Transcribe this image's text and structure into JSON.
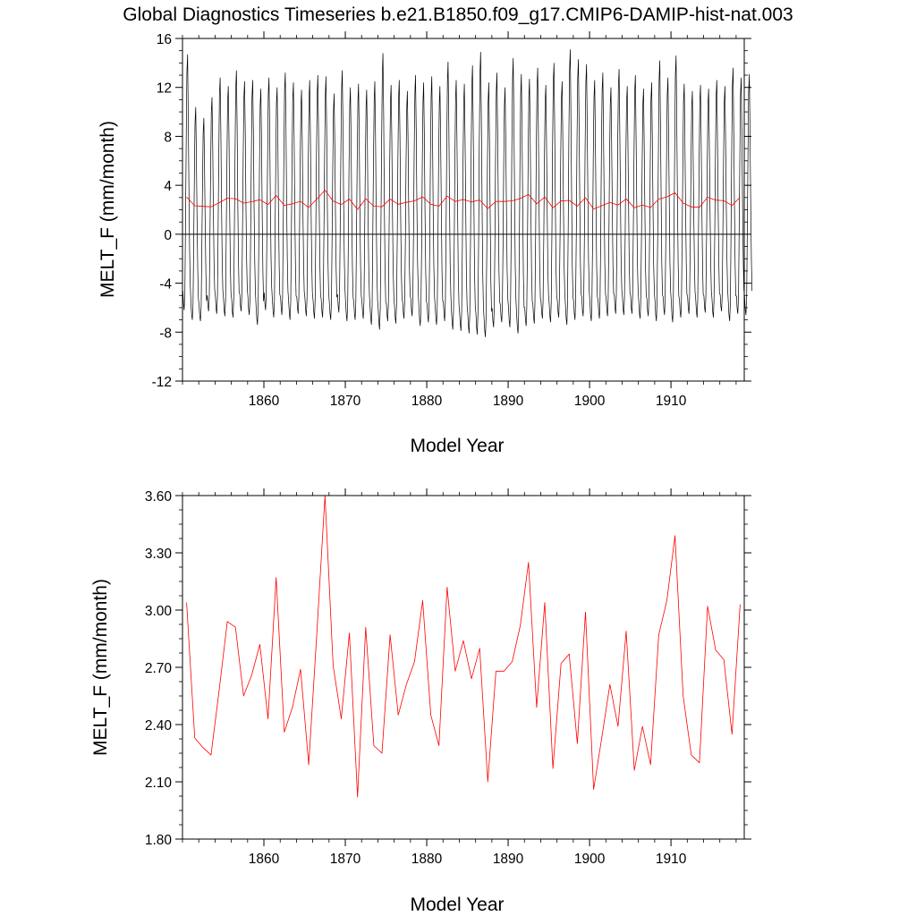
{
  "figure": {
    "title": "Global Diagnostics Timeseries b.e21.B1850.f09_g17.CMIP6-DAMIP-hist-nat.003"
  },
  "colors": {
    "monthly": "#000000",
    "annual": "#ff0000",
    "zero_line": "#000000"
  },
  "chart_data": [
    {
      "type": "line",
      "ylabel": "MELT_F (mm/month)",
      "xlabel": "Model Year",
      "xlim": [
        1850,
        1919
      ],
      "ylim": [
        -12,
        16
      ],
      "x_ticks": [
        1860,
        1870,
        1880,
        1890,
        1900,
        1910
      ],
      "y_ticks": [
        -12,
        -8,
        -4,
        0,
        4,
        8,
        12,
        16
      ],
      "y_tick_labels": [
        "-12",
        "-8",
        "-4",
        "0",
        "4",
        "8",
        "12",
        "16"
      ],
      "reference_line": 0,
      "series": [
        {
          "id": "monthly",
          "color": "#000000",
          "annual_peaks": [
            14.7,
            10.4,
            9.5,
            11.2,
            12.8,
            12.1,
            13.4,
            12.5,
            12.6,
            11.9,
            12.8,
            12.0,
            13.2,
            12.4,
            11.8,
            12.6,
            13.0,
            12.9,
            11.5,
            13.4,
            12.0,
            12.3,
            11.8,
            12.5,
            14.8,
            12.2,
            12.6,
            11.7,
            13.0,
            12.4,
            12.9,
            12.1,
            14.1,
            12.6,
            12.3,
            13.8,
            14.9,
            12.4,
            13.2,
            12.0,
            14.4,
            13.1,
            12.7,
            13.6,
            12.2,
            14.0,
            12.5,
            15.1,
            14.3,
            13.9,
            12.6,
            13.2,
            12.0,
            13.5,
            12.1,
            13.0,
            11.9,
            12.4,
            14.2,
            12.8,
            14.6,
            12.3,
            11.7,
            12.2,
            11.9,
            12.6,
            12.1,
            13.6,
            12.8,
            13.1
          ],
          "annual_troughs": [
            -6.2,
            -7.0,
            -7.1,
            -6.3,
            -6.5,
            -6.7,
            -6.8,
            -6.3,
            -6.6,
            -7.4,
            -6.2,
            -6.8,
            -6.6,
            -7.0,
            -6.5,
            -6.7,
            -6.9,
            -6.8,
            -7.0,
            -6.4,
            -7.1,
            -7.0,
            -6.9,
            -7.4,
            -7.8,
            -7.1,
            -7.3,
            -6.9,
            -6.7,
            -7.5,
            -7.2,
            -7.4,
            -7.1,
            -7.8,
            -7.9,
            -8.1,
            -8.2,
            -8.4,
            -7.6,
            -7.2,
            -7.6,
            -8.1,
            -7.5,
            -7.3,
            -6.9,
            -7.2,
            -6.8,
            -7.4,
            -7.0,
            -6.7,
            -7.1,
            -6.9,
            -6.7,
            -6.5,
            -6.6,
            -6.5,
            -6.9,
            -6.7,
            -7.1,
            -6.6,
            -7.2,
            -6.8,
            -6.5,
            -6.8,
            -6.4,
            -6.8,
            -6.3,
            -7.1,
            -6.5,
            -6.6
          ]
        },
        {
          "id": "annual",
          "color": "#ff0000",
          "x": [
            1850.5,
            1851.5,
            1852.5,
            1853.5,
            1854.5,
            1855.5,
            1856.5,
            1857.5,
            1858.5,
            1859.5,
            1860.5,
            1861.5,
            1862.5,
            1863.5,
            1864.5,
            1865.5,
            1866.5,
            1867.5,
            1868.5,
            1869.5,
            1870.5,
            1871.5,
            1872.5,
            1873.5,
            1874.5,
            1875.5,
            1876.5,
            1877.5,
            1878.5,
            1879.5,
            1880.5,
            1881.5,
            1882.5,
            1883.5,
            1884.5,
            1885.5,
            1886.5,
            1887.5,
            1888.5,
            1889.5,
            1890.5,
            1891.5,
            1892.5,
            1893.5,
            1894.5,
            1895.5,
            1896.5,
            1897.5,
            1898.5,
            1899.5,
            1900.5,
            1901.5,
            1902.5,
            1903.5,
            1904.5,
            1905.5,
            1906.5,
            1907.5,
            1908.5,
            1909.5,
            1910.5,
            1911.5,
            1912.5,
            1913.5,
            1914.5,
            1915.5,
            1916.5,
            1917.5,
            1918.5
          ],
          "values": [
            3.04,
            2.33,
            2.28,
            2.24,
            2.58,
            2.94,
            2.91,
            2.55,
            2.66,
            2.82,
            2.43,
            3.17,
            2.36,
            2.49,
            2.69,
            2.19,
            2.88,
            3.6,
            2.71,
            2.43,
            2.88,
            2.02,
            2.91,
            2.29,
            2.25,
            2.87,
            2.45,
            2.61,
            2.73,
            3.05,
            2.45,
            2.29,
            3.12,
            2.68,
            2.84,
            2.64,
            2.8,
            2.1,
            2.68,
            2.68,
            2.73,
            2.92,
            3.25,
            2.49,
            3.04,
            2.17,
            2.72,
            2.77,
            2.3,
            2.99,
            2.06,
            2.33,
            2.61,
            2.39,
            2.89,
            2.16,
            2.39,
            2.19,
            2.87,
            3.05,
            3.39,
            2.55,
            2.24,
            2.2,
            3.02,
            2.79,
            2.74,
            2.35,
            3.03
          ]
        }
      ]
    },
    {
      "type": "line",
      "ylabel": "MELT_F (mm/month)",
      "xlabel": "Model Year",
      "xlim": [
        1850,
        1919
      ],
      "ylim": [
        1.8,
        3.6
      ],
      "x_ticks": [
        1860,
        1870,
        1880,
        1890,
        1900,
        1910
      ],
      "y_ticks": [
        1.8,
        2.1,
        2.4,
        2.7,
        3.0,
        3.3,
        3.6
      ],
      "y_tick_labels": [
        "1.80",
        "2.10",
        "2.40",
        "2.70",
        "3.00",
        "3.30",
        "3.60"
      ],
      "series": [
        {
          "id": "annual",
          "color": "#ff0000",
          "x": [
            1850.5,
            1851.5,
            1852.5,
            1853.5,
            1854.5,
            1855.5,
            1856.5,
            1857.5,
            1858.5,
            1859.5,
            1860.5,
            1861.5,
            1862.5,
            1863.5,
            1864.5,
            1865.5,
            1866.5,
            1867.5,
            1868.5,
            1869.5,
            1870.5,
            1871.5,
            1872.5,
            1873.5,
            1874.5,
            1875.5,
            1876.5,
            1877.5,
            1878.5,
            1879.5,
            1880.5,
            1881.5,
            1882.5,
            1883.5,
            1884.5,
            1885.5,
            1886.5,
            1887.5,
            1888.5,
            1889.5,
            1890.5,
            1891.5,
            1892.5,
            1893.5,
            1894.5,
            1895.5,
            1896.5,
            1897.5,
            1898.5,
            1899.5,
            1900.5,
            1901.5,
            1902.5,
            1903.5,
            1904.5,
            1905.5,
            1906.5,
            1907.5,
            1908.5,
            1909.5,
            1910.5,
            1911.5,
            1912.5,
            1913.5,
            1914.5,
            1915.5,
            1916.5,
            1917.5,
            1918.5
          ],
          "values": [
            3.04,
            2.33,
            2.28,
            2.24,
            2.58,
            2.94,
            2.91,
            2.55,
            2.66,
            2.82,
            2.43,
            3.17,
            2.36,
            2.49,
            2.69,
            2.19,
            2.88,
            3.6,
            2.71,
            2.43,
            2.88,
            2.02,
            2.91,
            2.29,
            2.25,
            2.87,
            2.45,
            2.61,
            2.73,
            3.05,
            2.45,
            2.29,
            3.12,
            2.68,
            2.84,
            2.64,
            2.8,
            2.1,
            2.68,
            2.68,
            2.73,
            2.92,
            3.25,
            2.49,
            3.04,
            2.17,
            2.72,
            2.77,
            2.3,
            2.99,
            2.06,
            2.33,
            2.61,
            2.39,
            2.89,
            2.16,
            2.39,
            2.19,
            2.87,
            3.05,
            3.39,
            2.55,
            2.24,
            2.2,
            3.02,
            2.79,
            2.74,
            2.35,
            3.03
          ]
        }
      ]
    }
  ]
}
